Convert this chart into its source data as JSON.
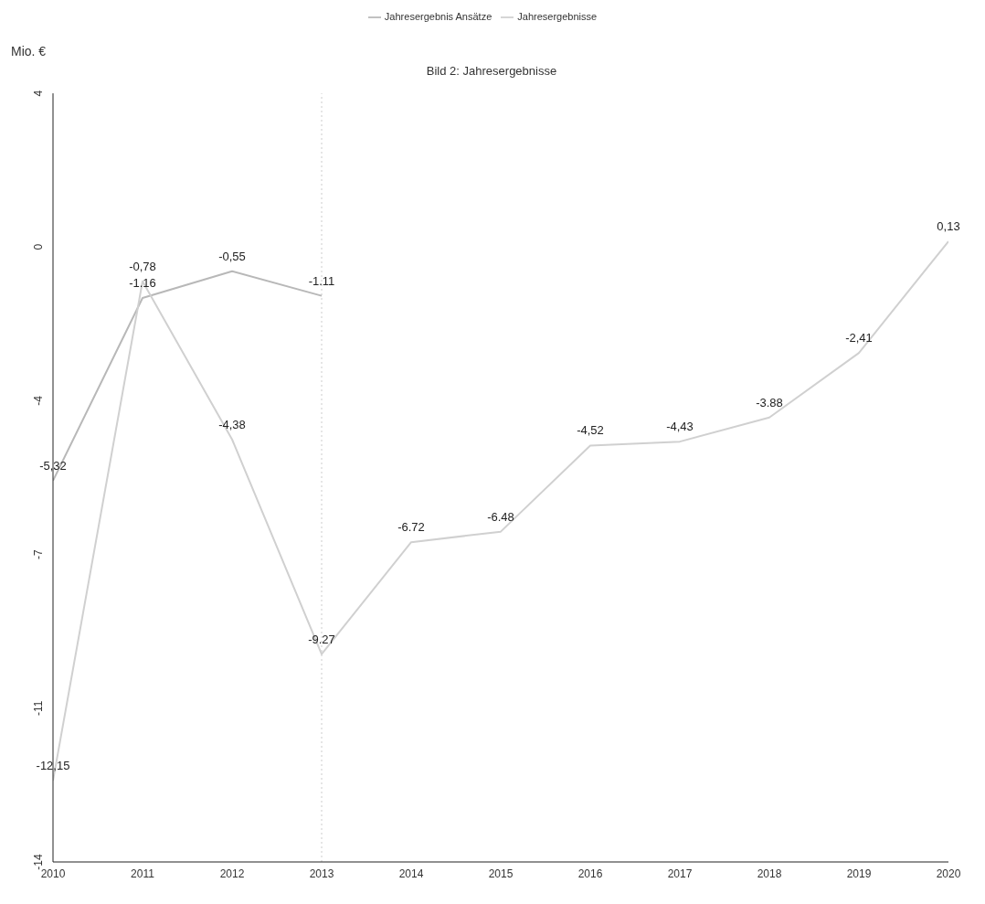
{
  "chart_data": {
    "type": "line",
    "title": "Bild 2: Jahresergebnisse",
    "ylabel": "Mio. €",
    "x": [
      2010,
      2011,
      2012,
      2013,
      2014,
      2015,
      2016,
      2017,
      2018,
      2019,
      2020
    ],
    "series": [
      {
        "name": "Jahresergebnis Ansätze",
        "color": "#b8b8b8",
        "values": [
          -5.32,
          -1.16,
          -0.55,
          -1.11,
          null,
          null,
          null,
          null,
          null,
          null,
          null
        ],
        "value_labels": [
          "-5,32",
          "-1.16",
          "-0,55",
          "-1.11",
          null,
          null,
          null,
          null,
          null,
          null,
          null
        ]
      },
      {
        "name": "Jahresergebnisse",
        "color": "#d0d0d0",
        "values": [
          -12.15,
          -0.78,
          -4.38,
          -9.27,
          -6.72,
          -6.48,
          -4.52,
          -4.43,
          -3.88,
          -2.41,
          0.13
        ],
        "value_labels": [
          "-12,15",
          "-0,78",
          "-4,38",
          "-9.27",
          "-6.72",
          "-6.48",
          "-4,52",
          "-4,43",
          "-3.88",
          "-2,41",
          "0,13"
        ]
      }
    ],
    "xlim": [
      2010,
      2020
    ],
    "xticks": [
      2010,
      2011,
      2012,
      2013,
      2014,
      2015,
      2016,
      2017,
      2018,
      2019,
      2020
    ],
    "ylim": [
      -14,
      3.5
    ],
    "yticks": [
      {
        "value": 3.5,
        "label": "4"
      },
      0,
      {
        "value": -3.5,
        "label": "-4"
      },
      -7,
      {
        "value": -10.5,
        "label": "-11"
      },
      -14
    ],
    "ref_lines": [
      {
        "axis": "x",
        "value": 2013,
        "label": null,
        "color": "#cccccc",
        "line_style": "dotted"
      }
    ],
    "grid": false,
    "legend": "top",
    "marker": "none",
    "line_style": "solid"
  }
}
